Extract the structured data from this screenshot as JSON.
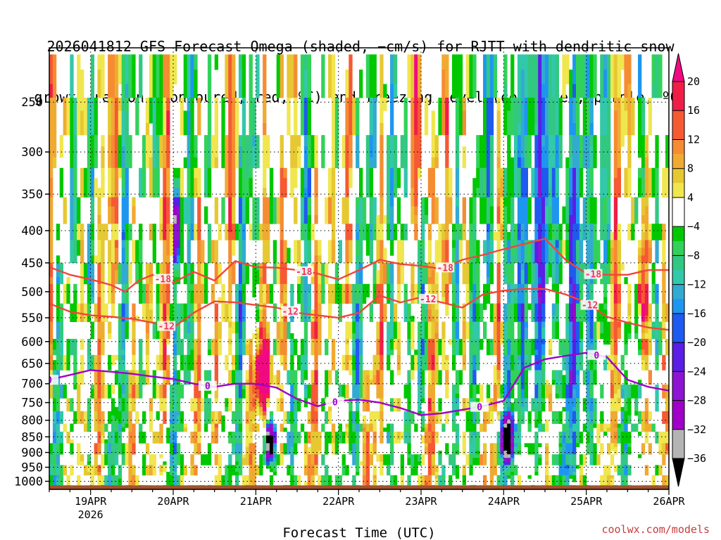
{
  "title_line1": "2026041812 GFS Forecast Omega (shaded, −cm/s) for RJTT with dendritic snow",
  "title_line2": "growth region (contoured, red, ºC) and freezing level (contoured, purple, ºC)",
  "credit": "coolwx.com/models",
  "colors": {
    "dsgz_contour": "#f0463c",
    "dsgz_label": "#f0325a",
    "freezing_contour": "#a000c8",
    "ground": "#a0522d"
  },
  "chart_data": {
    "type": "heatmap",
    "title": "2026041812 GFS Forecast Omega (shaded, −cm/s) for RJTT with dendritic snow growth region (contoured, red, ºC) and freezing level (contoured, purple, ºC)",
    "xlabel": "Forecast Time (UTC)",
    "ylabel": "",
    "y_scale": "log-pressure",
    "y_ticks": [
      250,
      300,
      350,
      400,
      450,
      500,
      550,
      600,
      650,
      700,
      750,
      800,
      850,
      900,
      950,
      1000
    ],
    "x_ticks": [
      {
        "label": "19APR",
        "sublabel": "2026",
        "hours": 12
      },
      {
        "label": "20APR",
        "sublabel": "",
        "hours": 36
      },
      {
        "label": "21APR",
        "sublabel": "",
        "hours": 60
      },
      {
        "label": "22APR",
        "sublabel": "",
        "hours": 84
      },
      {
        "label": "23APR",
        "sublabel": "",
        "hours": 108
      },
      {
        "label": "24APR",
        "sublabel": "",
        "hours": 132
      },
      {
        "label": "25APR",
        "sublabel": "",
        "hours": 156
      },
      {
        "label": "26APR",
        "sublabel": "",
        "hours": 180
      }
    ],
    "xlim_hours": [
      0,
      180
    ],
    "ylim_hpa": [
      1030,
      205
    ],
    "grid": true,
    "colorbar": {
      "labels": [
        "20",
        "16",
        "12",
        "8",
        "4",
        "−4",
        "−8",
        "−12",
        "−16",
        "−20",
        "−24",
        "−28",
        "−32",
        "−36"
      ],
      "bins": [
        {
          "range": "16 to 20",
          "color": "#f01e46"
        },
        {
          "range": "12 to 16",
          "color": "#f55a32"
        },
        {
          "range": "10 to 12",
          "color": "#f58c32"
        },
        {
          "range": "8 to 10",
          "color": "#f0aa32"
        },
        {
          "range": "6 to 8",
          "color": "#e6c832"
        },
        {
          "range": "4 to 6",
          "color": "#f0e650"
        },
        {
          "range": "-4 to 4",
          "color": "#ffffff"
        },
        {
          "range": "-6 to -4",
          "color": "#00c800"
        },
        {
          "range": "-8 to -6",
          "color": "#32d25a"
        },
        {
          "range": "-10 to -8",
          "color": "#32c882"
        },
        {
          "range": "-12 to -10",
          "color": "#32c8aa"
        },
        {
          "range": "-14 to -12",
          "color": "#32aad2"
        },
        {
          "range": "-16 to -14",
          "color": "#1e96f0"
        },
        {
          "range": "-20 to -16",
          "color": "#1e5af0"
        },
        {
          "range": "-24 to -20",
          "color": "#5a1ee6"
        },
        {
          "range": "-28 to -24",
          "color": "#8c14d2"
        },
        {
          "range": "-32 to -28",
          "color": "#a000c8"
        },
        {
          "range": "-36 to -32",
          "color": "#b4b4b4"
        }
      ],
      "over_color": "#f00a82",
      "under_color": "#000000"
    },
    "contours": [
      {
        "label": "-18",
        "hours": [
          0,
          6,
          12,
          18,
          22,
          26,
          30,
          36,
          42,
          48,
          54,
          60,
          66,
          72,
          78,
          84,
          90,
          96,
          102,
          108,
          114,
          120,
          126,
          132,
          138,
          144,
          150,
          156,
          162,
          168,
          174,
          180
        ],
        "hpa": [
          457,
          470,
          478,
          488,
          500,
          480,
          470,
          484,
          465,
          480,
          447,
          457,
          458,
          462,
          468,
          478,
          462,
          445,
          452,
          455,
          460,
          445,
          437,
          428,
          420,
          412,
          445,
          468,
          470,
          470,
          462,
          462
        ]
      },
      {
        "label": "-12",
        "hours": [
          0,
          6,
          12,
          18,
          24,
          30,
          36,
          42,
          48,
          54,
          60,
          66,
          72,
          78,
          84,
          90,
          96,
          102,
          108,
          114,
          120,
          126,
          132,
          138,
          144,
          150,
          156,
          162,
          168,
          174,
          180
        ],
        "hpa": [
          522,
          538,
          545,
          548,
          552,
          560,
          570,
          540,
          518,
          520,
          525,
          530,
          540,
          545,
          550,
          540,
          507,
          520,
          510,
          520,
          530,
          505,
          498,
          495,
          495,
          505,
          520,
          548,
          560,
          570,
          575
        ]
      },
      {
        "label": "0",
        "hours": [
          0,
          6,
          12,
          18,
          24,
          30,
          36,
          42,
          48,
          54,
          60,
          66,
          72,
          78,
          84,
          90,
          96,
          102,
          108,
          114,
          120,
          126,
          132,
          138,
          144,
          150,
          156,
          162,
          168,
          174,
          180
        ],
        "hpa": [
          690,
          678,
          666,
          670,
          675,
          682,
          688,
          700,
          708,
          700,
          700,
          710,
          740,
          760,
          745,
          742,
          750,
          765,
          785,
          780,
          770,
          760,
          745,
          660,
          640,
          632,
          625,
          635,
          690,
          708,
          718
        ]
      }
    ],
    "freezing_label_hours": [
      0,
      46,
      83,
      125,
      159
    ],
    "dsgz_label_hours": {
      "-18": [
        33,
        74,
        115,
        158
      ],
      "-12": [
        34,
        70,
        110,
        157
      ]
    },
    "ground_level_hpa": 1015
  }
}
